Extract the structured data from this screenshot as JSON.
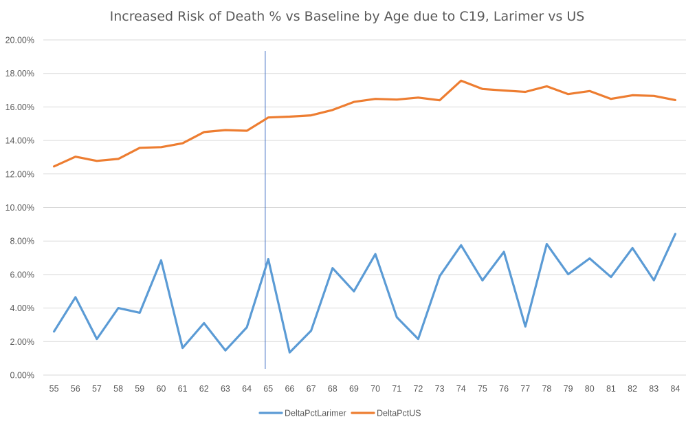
{
  "chart_data": {
    "type": "line",
    "title": "Increased Risk of Death % vs Baseline by Age due to C19, Larimer vs US",
    "xlabel": "",
    "ylabel": "",
    "categories": [
      "55",
      "56",
      "57",
      "58",
      "59",
      "60",
      "61",
      "62",
      "63",
      "64",
      "65",
      "66",
      "67",
      "68",
      "69",
      "70",
      "71",
      "72",
      "73",
      "74",
      "75",
      "76",
      "77",
      "78",
      "79",
      "80",
      "81",
      "82",
      "83",
      "84"
    ],
    "ylim": [
      0,
      20
    ],
    "yticks": [
      "0.00%",
      "2.00%",
      "4.00%",
      "6.00%",
      "8.00%",
      "10.00%",
      "12.00%",
      "14.00%",
      "16.00%",
      "18.00%",
      "20.00%"
    ],
    "grid": "horizontal",
    "legend_position": "bottom",
    "reference_line_at": "65",
    "series": [
      {
        "name": "DeltaPctLarimer",
        "color": "#5b9bd5",
        "values": [
          2.6,
          4.65,
          2.15,
          4.0,
          3.72,
          6.85,
          1.62,
          3.1,
          1.47,
          2.85,
          6.92,
          1.35,
          2.65,
          6.38,
          5.0,
          7.22,
          3.45,
          2.15,
          5.9,
          7.75,
          5.65,
          7.35,
          2.9,
          7.82,
          6.02,
          6.96,
          5.85,
          7.58,
          5.66,
          8.42
        ]
      },
      {
        "name": "DeltaPctUS",
        "color": "#ed7d31",
        "values": [
          12.45,
          13.03,
          12.78,
          12.9,
          13.56,
          13.6,
          13.83,
          14.5,
          14.62,
          14.58,
          15.37,
          15.42,
          15.5,
          15.82,
          16.3,
          16.48,
          16.44,
          16.56,
          16.4,
          17.57,
          17.07,
          16.98,
          16.9,
          17.23,
          16.77,
          16.95,
          16.48,
          16.7,
          16.66,
          16.41
        ]
      }
    ]
  }
}
